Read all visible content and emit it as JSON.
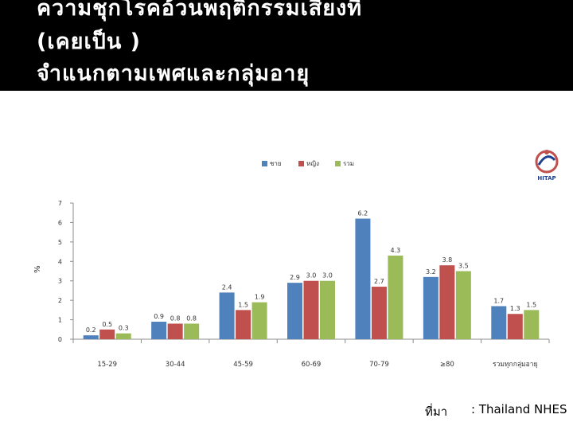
{
  "slide": {
    "title_line1": "ความชุกโรคอ้วนพฤติกรรมเสี่ยงที่",
    "title_line2": "(เคยเป็น )",
    "title_line3": "จำแนกตามเพศและกลุ่มอายุ",
    "source_label": "ที่มา",
    "source_value": ": Thailand NHES"
  },
  "logo": {
    "icon": "hitap-logo-icon",
    "text": "HITAP"
  },
  "chart_data": {
    "type": "bar",
    "title": "",
    "xlabel": "",
    "ylabel": "%",
    "ylim": [
      0,
      7
    ],
    "yticks": [
      "0",
      "1",
      "2",
      "3",
      "4",
      "5",
      "6",
      "7"
    ],
    "grid": false,
    "legend_position": "top",
    "categories": [
      "15-29",
      "30-44",
      "45-59",
      "60-69",
      "70-79",
      "≥80",
      "รวมทุกกลุ่มอายุ"
    ],
    "series": [
      {
        "name": "ชาย",
        "color": "#4f81bd",
        "values": [
          0.2,
          0.9,
          2.4,
          2.9,
          6.2,
          3.2,
          1.7
        ],
        "labels": [
          "0.2",
          "0.9",
          "2.4",
          "2.9",
          "6.2",
          "3.2",
          "1.7"
        ]
      },
      {
        "name": "หญิง",
        "color": "#c0504d",
        "values": [
          0.5,
          0.8,
          1.5,
          3.0,
          2.7,
          3.8,
          1.3
        ],
        "labels": [
          "0.5",
          "0.8",
          "1.5",
          "3.0",
          "2.7",
          "3.8",
          "1.3"
        ]
      },
      {
        "name": "รวม",
        "color": "#9bbb59",
        "values": [
          0.3,
          0.8,
          1.9,
          3.0,
          4.3,
          3.5,
          1.5
        ],
        "labels": [
          "0.3",
          "0.8",
          "1.9",
          "3.0",
          "4.3",
          "3.5",
          "1.5"
        ]
      }
    ]
  }
}
